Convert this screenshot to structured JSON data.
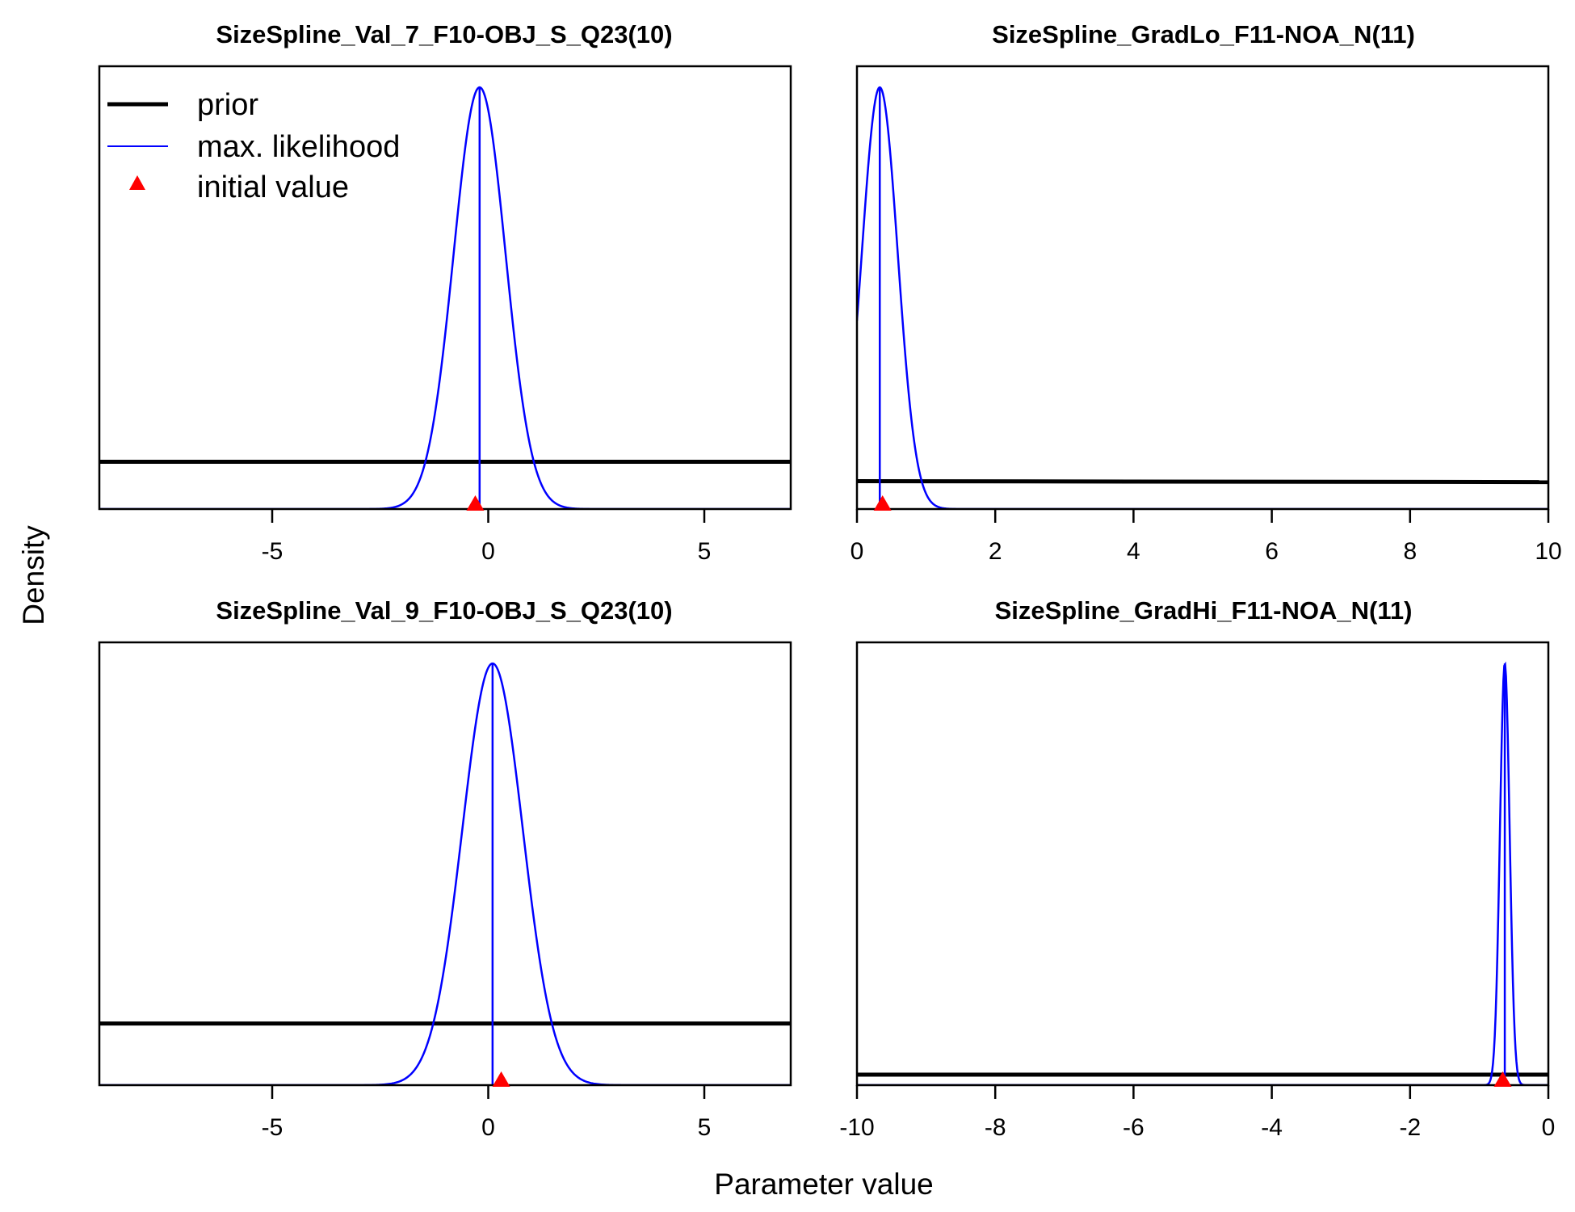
{
  "figure": {
    "ylabel": "Density",
    "xlabel": "Parameter value",
    "legend": {
      "placement": "top-left of first panel",
      "items": [
        {
          "label": "prior",
          "kind": "line",
          "color": "#000000"
        },
        {
          "label": "max. likelihood",
          "kind": "line",
          "color": "#0000ff"
        },
        {
          "label": "initial value",
          "kind": "marker",
          "color": "#ff0000"
        }
      ]
    },
    "colors": {
      "prior": "#000000",
      "likelihood": "#0000ff",
      "initial": "#ff0000"
    }
  },
  "chart_data": [
    {
      "type": "line",
      "title": "SizeSpline_Val_7_F10-OBJ_S_Q23(10)",
      "xlim": [
        -9,
        7
      ],
      "ylim": [
        0,
        1.05
      ],
      "xticks": [
        -5,
        0,
        5
      ],
      "xtick_labels": [
        "-5",
        "0",
        "5"
      ],
      "prior": {
        "x": [
          -9,
          7
        ],
        "y": [
          0.112,
          0.112
        ]
      },
      "likelihood": {
        "mean": -0.2,
        "sd": 0.6
      },
      "mle": -0.2,
      "initial_value": -0.3
    },
    {
      "type": "line",
      "title": "SizeSpline_GradLo_F11-NOA_N(11)",
      "xlim": [
        0,
        10
      ],
      "ylim": [
        0,
        1.05
      ],
      "xticks": [
        0,
        2,
        4,
        6,
        8,
        10
      ],
      "xtick_labels": [
        "0",
        "2",
        "4",
        "6",
        "8",
        "10"
      ],
      "prior": {
        "x": [
          0,
          10
        ],
        "y": [
          0.066,
          0.064
        ]
      },
      "likelihood": {
        "mean": 0.33,
        "sd": 0.26
      },
      "mle": 0.33,
      "initial_value": 0.37
    },
    {
      "type": "line",
      "title": "SizeSpline_Val_9_F10-OBJ_S_Q23(10)",
      "xlim": [
        -9,
        7
      ],
      "ylim": [
        0,
        1.05
      ],
      "xticks": [
        -5,
        0,
        5
      ],
      "xtick_labels": [
        "-5",
        "0",
        "5"
      ],
      "prior": {
        "x": [
          -9,
          7
        ],
        "y": [
          0.146,
          0.146
        ]
      },
      "likelihood": {
        "mean": 0.1,
        "sd": 0.7
      },
      "mle": 0.1,
      "initial_value": 0.3
    },
    {
      "type": "line",
      "title": "SizeSpline_GradHi_F11-NOA_N(11)",
      "xlim": [
        -10,
        0
      ],
      "ylim": [
        0,
        1.05
      ],
      "xticks": [
        -10,
        -8,
        -6,
        -4,
        -2,
        0
      ],
      "xtick_labels": [
        "-10",
        "-8",
        "-6",
        "-4",
        "-2",
        "0"
      ],
      "prior": {
        "x": [
          -10,
          0
        ],
        "y": [
          0.025,
          0.025
        ]
      },
      "likelihood": {
        "mean": -0.63,
        "sd": 0.07
      },
      "mle": -0.63,
      "initial_value": -0.66
    }
  ]
}
